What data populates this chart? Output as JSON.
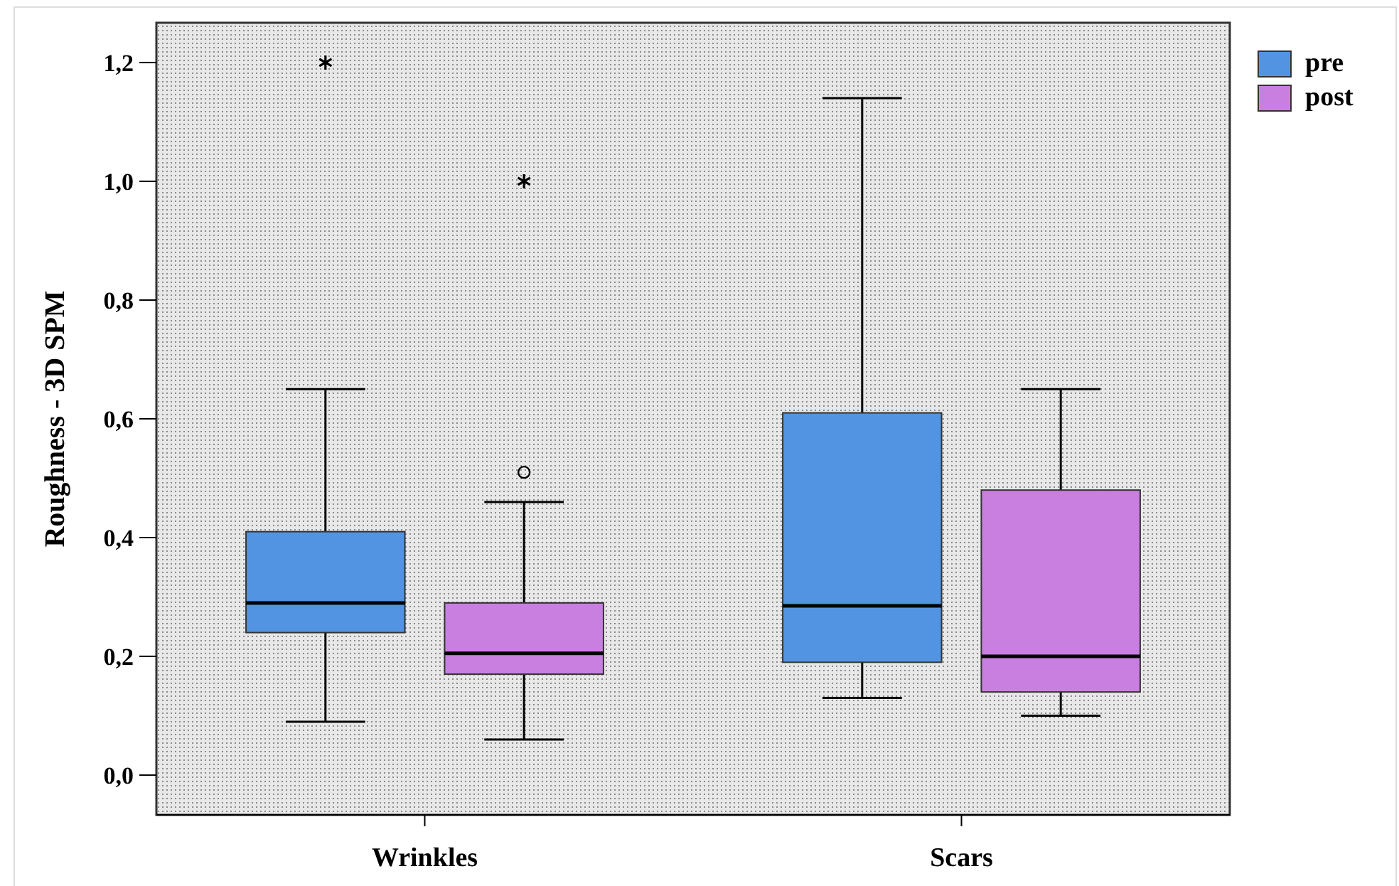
{
  "chart_data": {
    "type": "box",
    "ylabel": "Roughness - 3D SPM",
    "categories": [
      "Wrinkles",
      "Scars"
    ],
    "ylim": [
      -0.067,
      1.267
    ],
    "yticks": [
      {
        "value": 0,
        "label": "0,0"
      },
      {
        "value": 0.2,
        "label": "0,2"
      },
      {
        "value": 0.4,
        "label": "0,4"
      },
      {
        "value": 0.6,
        "label": "0,6"
      },
      {
        "value": 0.8,
        "label": "0,8"
      },
      {
        "value": 1,
        "label": "1,0"
      },
      {
        "value": 1.2,
        "label": "1,2"
      }
    ],
    "legend": "top right",
    "grid": false,
    "series": [
      {
        "name": "pre",
        "color": "#5294e2",
        "boxes": [
          {
            "low": 0.09,
            "q1": 0.24,
            "median": 0.29,
            "q3": 0.41,
            "high": 0.65,
            "outliers": [
              1.2
            ]
          },
          {
            "low": 0.13,
            "q1": 0.19,
            "median": 0.285,
            "q3": 0.61,
            "high": 1.14
          }
        ]
      },
      {
        "name": "post",
        "color": "#c97fe0",
        "boxes": [
          {
            "low": 0.06,
            "q1": 0.17,
            "median": 0.205,
            "q3": 0.29,
            "high": 0.46,
            "outliers": [
              0.51,
              1.0
            ]
          },
          {
            "low": 0.1,
            "q1": 0.14,
            "median": 0.2,
            "q3": 0.48,
            "high": 0.65
          }
        ]
      }
    ]
  }
}
